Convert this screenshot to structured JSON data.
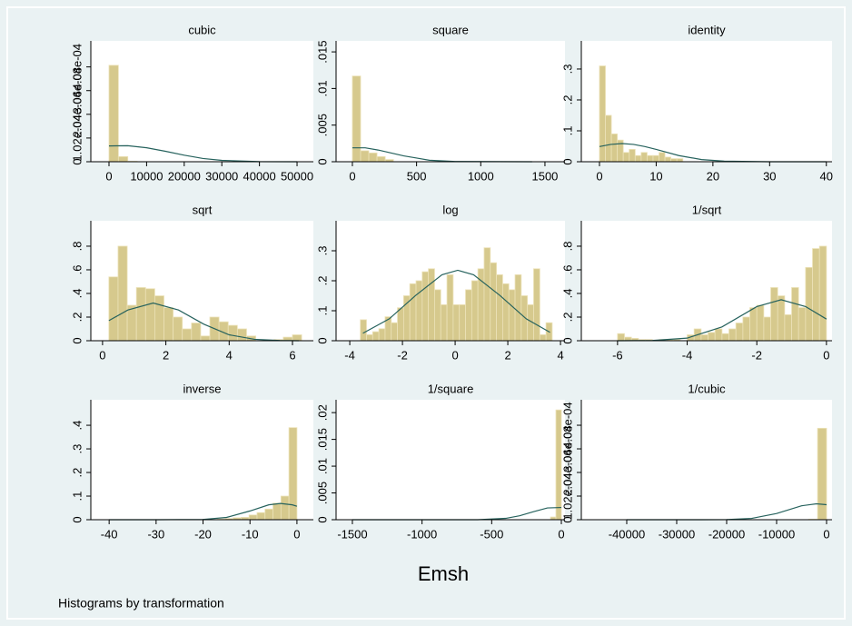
{
  "xlabel": "Emsh",
  "note": "Histograms by transformation",
  "chart_data": [
    {
      "type": "histogram",
      "title": "cubic",
      "color": "#d6c98d",
      "bins": [
        0,
        2500,
        5000,
        7500
      ],
      "values": [
        0.000415,
        2.2e-05,
        2e-06
      ],
      "curve": {
        "color": "#26625d",
        "x": [
          0,
          5000,
          10000,
          15000,
          20000,
          25000,
          30000,
          40000,
          50000
        ],
        "values": [
          6.8e-05,
          6.9e-05,
          6e-05,
          4.5e-05,
          2.8e-05,
          1.4e-05,
          6e-06,
          5e-07,
          0
        ]
      },
      "xlim": [
        -4830,
        54340
      ],
      "xticks": [
        0,
        10000,
        20000,
        30000,
        40000,
        50000
      ],
      "ylim": [
        0,
        0.00052
      ],
      "yticks": [
        0,
        {
          "value": 0.000102,
          "label": "1.02e-04"
        },
        {
          "value": 0.000204,
          "label": "2.04e-04"
        },
        {
          "value": 0.000306,
          "label": "3.06e-04"
        },
        {
          "value": 0.000408,
          "label": "4.08e-04"
        }
      ]
    },
    {
      "type": "histogram",
      "title": "square",
      "color": "#d6c98d",
      "bins": [
        0,
        64,
        128,
        192,
        256,
        320
      ],
      "values": [
        0.0117,
        0.0015,
        0.0012,
        0.0007,
        0.0003
      ],
      "curve": {
        "color": "#26625d",
        "x": [
          0,
          100,
          200,
          300,
          400,
          500,
          600,
          800,
          1400
        ],
        "values": [
          0.0019,
          0.0019,
          0.0016,
          0.0012,
          0.0008,
          0.0005,
          0.0002,
          3e-05,
          0
        ]
      },
      "xlim": [
        -127,
        1656
      ],
      "xticks": [
        0,
        500,
        1000,
        1500
      ],
      "ylim": [
        0,
        0.0165
      ],
      "yticks": [
        0,
        {
          "value": 0.005,
          "label": ".005"
        },
        {
          "value": 0.01,
          "label": ".01"
        },
        {
          "value": 0.015,
          "label": ".015"
        }
      ]
    },
    {
      "type": "histogram",
      "title": "identity",
      "color": "#d6c98d",
      "bins": [
        0,
        1.05,
        2.1,
        3.15,
        4.2,
        5.25,
        6.3,
        7.35,
        8.4,
        9.45,
        10.5,
        11.55,
        12.6,
        13.65,
        14.7
      ],
      "values": [
        0.31,
        0.15,
        0.09,
        0.07,
        0.03,
        0.04,
        0.02,
        0.03,
        0.02,
        0.02,
        0.03,
        0.015,
        0.01,
        0.01
      ],
      "curve": {
        "color": "#26625d",
        "x": [
          0,
          2,
          4,
          6,
          8,
          10,
          14,
          18,
          22,
          30,
          40
        ],
        "values": [
          0.049,
          0.056,
          0.0587,
          0.056,
          0.049,
          0.0398,
          0.0199,
          0.007,
          0.0018,
          0,
          0
        ]
      },
      "xlim": [
        -3.2,
        41
      ],
      "xticks": [
        0,
        10,
        20,
        30,
        40
      ],
      "ylim": [
        0,
        0.391
      ],
      "yticks": [
        0,
        {
          "value": 0.1,
          "label": ".1"
        },
        {
          "value": 0.2,
          "label": ".2"
        },
        {
          "value": 0.3,
          "label": ".3"
        }
      ]
    },
    {
      "type": "histogram",
      "title": "sqrt",
      "color": "#d6c98d",
      "bins": [
        0.2,
        0.49,
        0.78,
        1.07,
        1.36,
        1.65,
        1.94,
        2.23,
        2.52,
        2.81,
        3.1,
        3.39,
        3.68,
        3.97,
        4.26,
        4.55,
        4.84,
        5.13,
        5.42,
        5.71,
        6.0,
        6.29
      ],
      "values": [
        0.54,
        0.8,
        0.3,
        0.45,
        0.44,
        0.38,
        0.28,
        0.2,
        0.1,
        0.15,
        0.04,
        0.2,
        0.16,
        0.13,
        0.1,
        0.04,
        0,
        0,
        0.01,
        0.03,
        0.05
      ],
      "curve": {
        "color": "#26625d",
        "x": [
          0.2,
          0.8,
          1.6,
          2.4,
          3.2,
          4,
          4.8,
          5.6,
          6.2
        ],
        "values": [
          0.17,
          0.26,
          0.319,
          0.26,
          0.14,
          0.05,
          0.012,
          0.002,
          0
        ]
      },
      "xlim": [
        -0.37,
        6.66
      ],
      "xticks": [
        0,
        2,
        4,
        6
      ],
      "ylim": [
        0,
        1.015
      ],
      "yticks": [
        0,
        {
          "value": 0.2,
          "label": ".2"
        },
        {
          "value": 0.4,
          "label": ".4"
        },
        {
          "value": 0.6,
          "label": ".6"
        },
        {
          "value": 0.8,
          "label": ".8"
        }
      ]
    },
    {
      "type": "histogram",
      "title": "log",
      "color": "#d6c98d",
      "bins": [
        -3.6,
        -3.365,
        -3.13,
        -2.895,
        -2.66,
        -2.425,
        -2.19,
        -1.955,
        -1.72,
        -1.485,
        -1.25,
        -1.015,
        -0.78,
        -0.545,
        -0.31,
        -0.075,
        0.16,
        0.395,
        0.63,
        0.865,
        1.1,
        1.335,
        1.57,
        1.805,
        2.04,
        2.275,
        2.51,
        2.745,
        2.98,
        3.215,
        3.45,
        3.685
      ],
      "values": [
        0.07,
        0.02,
        0.03,
        0.04,
        0.08,
        0.06,
        0.11,
        0.15,
        0.19,
        0.2,
        0.23,
        0.24,
        0.17,
        0.12,
        0.22,
        0.12,
        0.12,
        0.17,
        0.2,
        0.24,
        0.31,
        0.26,
        0.22,
        0.19,
        0.17,
        0.22,
        0.15,
        0.12,
        0.24,
        0.02,
        0.06
      ],
      "curve": {
        "color": "#26625d",
        "x": [
          -3.5,
          -2.5,
          -1.5,
          -0.5,
          0.1,
          0.7,
          1.7,
          2.7,
          3.6
        ],
        "values": [
          0.025,
          0.073,
          0.151,
          0.22,
          0.235,
          0.22,
          0.151,
          0.073,
          0.028
        ]
      },
      "xlim": [
        -4.52,
        4.17
      ],
      "xticks": [
        -4,
        -2,
        0,
        2,
        4
      ],
      "ylim": [
        0,
        0.4
      ],
      "yticks": [
        0,
        {
          "value": 0.1,
          "label": ".1"
        },
        {
          "value": 0.2,
          "label": ".2"
        },
        {
          "value": 0.3,
          "label": ".3"
        }
      ]
    },
    {
      "type": "histogram",
      "title": "1/sqrt",
      "color": "#d6c98d",
      "bins": [
        -6,
        -5.8,
        -5.6,
        -5.4,
        -5.2,
        -5,
        -4.8,
        -4.6,
        -4.4,
        -4.2,
        -4,
        -3.8,
        -3.6,
        -3.4,
        -3.2,
        -3,
        -2.8,
        -2.6,
        -2.4,
        -2.2,
        -2,
        -1.8,
        -1.6,
        -1.4,
        -1.2,
        -1,
        -0.8,
        -0.6,
        -0.4,
        -0.2,
        0
      ],
      "values": [
        0.06,
        0.03,
        0.02,
        0.01,
        0.01,
        0,
        0.01,
        0.01,
        0.01,
        0,
        0.05,
        0.1,
        0.05,
        0.07,
        0.1,
        0.06,
        0.1,
        0.15,
        0.2,
        0.28,
        0.3,
        0.2,
        0.45,
        0.38,
        0.22,
        0.45,
        0.28,
        0.62,
        0.78,
        0.8
      ],
      "curve": {
        "color": "#26625d",
        "x": [
          -6,
          -5,
          -4,
          -3,
          -2,
          -1.3,
          -0.6,
          0
        ],
        "values": [
          0,
          0.002,
          0.022,
          0.117,
          0.289,
          0.347,
          0.289,
          0.183
        ]
      },
      "xlim": [
        -7.04,
        0.16
      ],
      "xticks": [
        -6,
        -4,
        -2,
        0
      ],
      "ylim": [
        0,
        1.015
      ],
      "yticks": [
        0,
        {
          "value": 0.2,
          "label": ".2"
        },
        {
          "value": 0.4,
          "label": ".4"
        },
        {
          "value": 0.6,
          "label": ".6"
        },
        {
          "value": 0.8,
          "label": ".8"
        }
      ]
    },
    {
      "type": "histogram",
      "title": "inverse",
      "color": "#d6c98d",
      "bins": [
        -17,
        -15.3,
        -13.6,
        -11.9,
        -10.2,
        -8.5,
        -6.8,
        -5.1,
        -3.4,
        -1.7,
        0
      ],
      "values": [
        0.003,
        0.005,
        0.008,
        0.01,
        0.02,
        0.03,
        0.045,
        0.07,
        0.1,
        0.39
      ],
      "curve": {
        "color": "#26625d",
        "x": [
          -40,
          -30,
          -20,
          -15,
          -10,
          -6,
          -3.5,
          -1,
          0
        ],
        "values": [
          0,
          0,
          0.0012,
          0.0096,
          0.037,
          0.063,
          0.0688,
          0.063,
          0.057
        ]
      },
      "xlim": [
        -43.9,
        3.5
      ],
      "xticks": [
        -40,
        -30,
        -20,
        -10,
        0
      ],
      "ylim": [
        0,
        0.508
      ],
      "yticks": [
        0,
        {
          "value": 0.1,
          "label": ".1"
        },
        {
          "value": 0.2,
          "label": ".2"
        },
        {
          "value": 0.3,
          "label": ".3"
        },
        {
          "value": 0.4,
          "label": ".4"
        }
      ]
    },
    {
      "type": "histogram",
      "title": "1/square",
      "color": "#d6c98d",
      "bins": [
        -78,
        -39,
        0
      ],
      "values": [
        0.0005,
        0.0205
      ],
      "curve": {
        "color": "#26625d",
        "x": [
          -1500,
          -600,
          -400,
          -300,
          -200,
          -100,
          0
        ],
        "values": [
          0,
          0,
          0.00025,
          0.00073,
          0.0015,
          0.0022,
          0.00228
        ]
      },
      "xlim": [
        -1617,
        26
      ],
      "xticks": [
        -1500,
        -1000,
        -500,
        0
      ],
      "ylim": [
        0,
        0.0224
      ],
      "yticks": [
        0,
        {
          "value": 0.005,
          "label": ".005"
        },
        {
          "value": 0.01,
          "label": ".01"
        },
        {
          "value": 0.015,
          "label": ".015"
        },
        {
          "value": 0.02,
          "label": ".02"
        }
      ]
    },
    {
      "type": "histogram",
      "title": "1/cubic",
      "color": "#d6c98d",
      "bins": [
        -3600,
        -1800,
        0
      ],
      "values": [
        2e-06,
        0.000395
      ],
      "curve": {
        "color": "#26625d",
        "x": [
          -40000,
          -25000,
          -20000,
          -15000,
          -10000,
          -5000,
          -2000,
          0
        ],
        "values": [
          0,
          0,
          5.5e-07,
          5.6e-06,
          2.66e-05,
          6e-05,
          6.88e-05,
          6.47e-05
        ]
      },
      "xlim": [
        -49090,
        1090
      ],
      "xticks": [
        -40000,
        -30000,
        -20000,
        -10000,
        0
      ],
      "ylim": [
        0,
        0.000518
      ],
      "yticks": [
        0,
        {
          "value": 0.000102,
          "label": "1.02e-04"
        },
        {
          "value": 0.000204,
          "label": "2.04e-04"
        },
        {
          "value": 0.000306,
          "label": "3.06e-04"
        },
        {
          "value": 0.000408,
          "label": "4.08e-04"
        }
      ]
    }
  ]
}
